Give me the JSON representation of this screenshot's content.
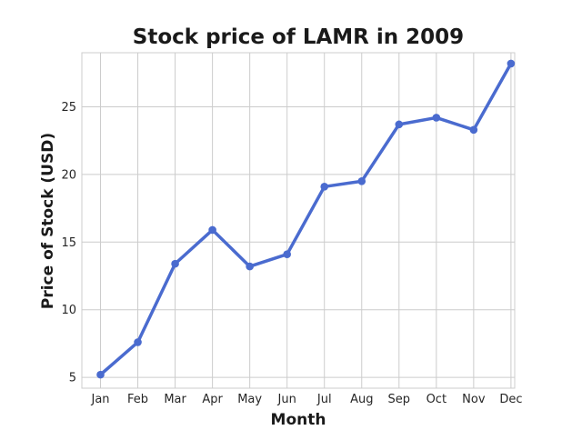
{
  "chart_data": {
    "type": "line",
    "title": "Stock price of LAMR in 2009",
    "xlabel": "Month",
    "ylabel": "Price of Stock (USD)",
    "categories": [
      "Jan",
      "Feb",
      "Mar",
      "Apr",
      "May",
      "Jun",
      "Jul",
      "Aug",
      "Sep",
      "Oct",
      "Nov",
      "Dec"
    ],
    "series": [
      {
        "values": [
          5.2,
          7.6,
          13.4,
          15.9,
          13.2,
          14.1,
          19.1,
          19.5,
          23.7,
          24.2,
          23.3,
          28.2
        ]
      }
    ],
    "ylim": [
      4.2,
      29.0
    ],
    "yticks": [
      5,
      10,
      15,
      20,
      25
    ],
    "grid": true,
    "colors": {
      "line": "#4a6bcf",
      "grid": "#cccccc",
      "frame": "#cccccc"
    }
  }
}
